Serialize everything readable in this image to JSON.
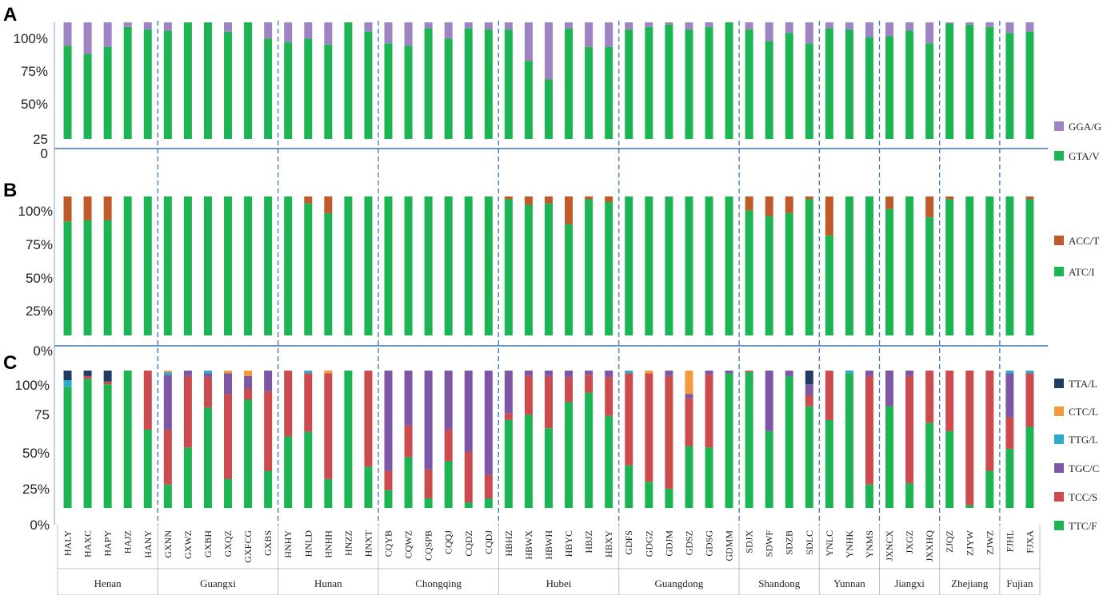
{
  "chart_data": {
    "type": "bar",
    "stacked": true,
    "normalized": true,
    "samples": [
      "HALY",
      "HAXC",
      "HAPY",
      "HAJZ",
      "HANY",
      "GXNN",
      "GXWZ",
      "GXBH",
      "GXQZ",
      "GXFCG",
      "GXBS",
      "HNHY",
      "HNLD",
      "HNHH",
      "HNZZ",
      "HNXT",
      "CQYB",
      "CQWZ",
      "CQSPB",
      "CQQJ",
      "CQDZ",
      "CQDJ",
      "HBHZ",
      "HBWX",
      "HBWH",
      "HBYC",
      "HBJZ",
      "HBXY",
      "GDFS",
      "GDGZ",
      "GDJM",
      "GDSZ",
      "GDSG",
      "GDMM",
      "SDJX",
      "SDWF",
      "SDZB",
      "SDLC",
      "YNLC",
      "YNHK",
      "YNMS",
      "JXNCX",
      "JXGZ",
      "JXXHQ",
      "ZJQZ",
      "ZJYW",
      "ZJWZ",
      "FJHL",
      "FJXA"
    ],
    "provinces": [
      {
        "name": "Henan",
        "count": 5
      },
      {
        "name": "Guangxi",
        "count": 6
      },
      {
        "name": "Hunan",
        "count": 5
      },
      {
        "name": "Chongqing",
        "count": 6
      },
      {
        "name": "Hubei",
        "count": 6
      },
      {
        "name": "Guangdong",
        "count": 6
      },
      {
        "name": "Shandong",
        "count": 4
      },
      {
        "name": "Yunnan",
        "count": 3
      },
      {
        "name": "Jiangxi",
        "count": 3
      },
      {
        "name": "Zhejiang",
        "count": 3
      },
      {
        "name": "Fujian",
        "count": 2
      }
    ],
    "panels": [
      {
        "label": "A",
        "ytick_labels": [
          "0",
          "25",
          "50%",
          "75%",
          "100%"
        ],
        "series": [
          {
            "name": "GTA/V",
            "color": "#1db454",
            "values": [
              80,
              73,
              79,
              96,
              94,
              93,
              100,
              100,
              92,
              100,
              86,
              83,
              86,
              81,
              100,
              92,
              82,
              80,
              95,
              86,
              95,
              94,
              94,
              67,
              51,
              95,
              79,
              79,
              94,
              96,
              98,
              94,
              96,
              100,
              94,
              84,
              91,
              82,
              95,
              94,
              87,
              88,
              93,
              82,
              99,
              98,
              96,
              91,
              92
            ]
          },
          {
            "name": "GGA/G",
            "color": "#9e84c2",
            "values": [
              20,
              27,
              21,
              4,
              6,
              7,
              0,
              0,
              8,
              0,
              14,
              17,
              14,
              19,
              0,
              8,
              18,
              20,
              5,
              14,
              5,
              6,
              6,
              33,
              49,
              5,
              21,
              21,
              6,
              4,
              2,
              6,
              4,
              0,
              6,
              16,
              9,
              18,
              5,
              6,
              13,
              12,
              7,
              18,
              1,
              2,
              4,
              9,
              8
            ]
          }
        ]
      },
      {
        "label": "B",
        "ytick_labels": [
          "0%",
          "25%",
          "50%",
          "75%",
          "100%"
        ],
        "series": [
          {
            "name": "ATC/I",
            "color": "#1db454",
            "values": [
              82,
              83,
              83,
              100,
              100,
              100,
              100,
              100,
              100,
              100,
              100,
              100,
              95,
              88,
              100,
              100,
              100,
              100,
              100,
              100,
              100,
              100,
              98,
              94,
              95,
              80,
              98,
              96,
              100,
              100,
              100,
              100,
              100,
              100,
              90,
              86,
              88,
              98,
              72,
              100,
              100,
              91,
              100,
              85,
              98,
              100,
              100,
              100,
              98
            ]
          },
          {
            "name": "ACC/T",
            "color": "#bf5a2a",
            "values": [
              18,
              17,
              17,
              0,
              0,
              0,
              0,
              0,
              0,
              0,
              0,
              0,
              5,
              12,
              0,
              0,
              0,
              0,
              0,
              0,
              0,
              0,
              2,
              6,
              5,
              20,
              2,
              4,
              0,
              0,
              0,
              0,
              0,
              0,
              10,
              14,
              12,
              2,
              28,
              0,
              0,
              9,
              0,
              15,
              2,
              0,
              0,
              0,
              2
            ]
          }
        ]
      },
      {
        "label": "C",
        "ytick_labels": [
          "0%",
          "25%",
          "50%",
          "75",
          "100%"
        ],
        "series": [
          {
            "name": "TTC/F",
            "color": "#1db454",
            "values": [
              88,
              94,
              90,
              100,
              57,
              17,
              44,
              73,
              21,
              78,
              27,
              51,
              56,
              21,
              100,
              30,
              13,
              37,
              7,
              34,
              4,
              7,
              64,
              68,
              58,
              77,
              84,
              67,
              31,
              19,
              14,
              45,
              44,
              98,
              99,
              56,
              96,
              74,
              64,
              93,
              17,
              74,
              18,
              62,
              56,
              2,
              27,
              43,
              59
            ]
          },
          {
            "name": "TCC/S",
            "color": "#cb4b4e",
            "values": [
              0,
              2,
              2,
              0,
              43,
              40,
              52,
              22,
              61,
              8,
              58,
              47,
              43,
              77,
              0,
              70,
              14,
              23,
              21,
              23,
              37,
              17,
              5,
              28,
              38,
              18,
              13,
              28,
              67,
              79,
              82,
              35,
              53,
              0,
              1,
              0,
              0,
              8,
              36,
              0,
              79,
              0,
              78,
              38,
              44,
              98,
              73,
              23,
              39
            ]
          },
          {
            "name": "TGC/C",
            "color": "#7d56a6",
            "values": [
              0,
              0,
              0,
              0,
              0,
              40,
              4,
              3,
              15,
              9,
              15,
              0,
              0,
              0,
              0,
              0,
              73,
              40,
              72,
              43,
              59,
              76,
              31,
              4,
              4,
              5,
              3,
              5,
              0,
              0,
              4,
              3,
              3,
              2,
              0,
              44,
              4,
              8,
              0,
              0,
              4,
              26,
              4,
              0,
              0,
              0,
              0,
              32,
              0
            ]
          },
          {
            "name": "TTG/L",
            "color": "#2eaacb",
            "values": [
              5,
              0,
              0,
              0,
              0,
              2,
              0,
              2,
              0,
              0,
              0,
              0,
              2,
              0,
              0,
              0,
              0,
              0,
              0,
              0,
              0,
              0,
              0,
              0,
              0,
              0,
              0,
              0,
              2,
              0,
              0,
              0,
              0,
              0,
              0,
              0,
              0,
              0,
              0,
              2,
              0,
              0,
              0,
              0,
              0,
              0,
              0,
              2,
              2
            ]
          },
          {
            "name": "CTC/L",
            "color": "#f39a3c",
            "values": [
              0,
              0,
              0,
              0,
              0,
              1,
              0,
              0,
              2,
              4,
              0,
              0,
              0,
              2,
              0,
              0,
              0,
              0,
              0,
              0,
              0,
              0,
              0,
              0,
              0,
              0,
              0,
              0,
              0,
              2,
              0,
              17,
              0,
              0,
              0,
              0,
              0,
              0,
              0,
              0,
              0,
              0,
              0,
              0,
              0,
              0,
              0,
              0,
              0
            ]
          },
          {
            "name": "TTA/L",
            "color": "#1f3d63",
            "values": [
              7,
              4,
              8,
              0,
              0,
              0,
              0,
              0,
              0,
              0,
              0,
              0,
              0,
              0,
              0,
              0,
              0,
              0,
              0,
              0,
              0,
              0,
              0,
              0,
              0,
              0,
              0,
              0,
              0,
              0,
              0,
              0,
              0,
              0,
              0,
              0,
              0,
              10,
              0,
              0,
              0,
              0,
              0,
              0,
              0,
              0,
              0,
              0,
              0
            ]
          }
        ]
      }
    ]
  }
}
